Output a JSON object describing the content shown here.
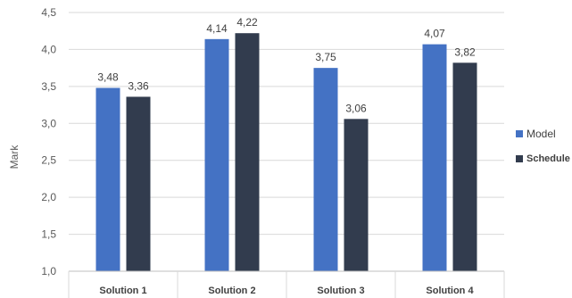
{
  "chart_data": {
    "type": "bar",
    "categories": [
      "Solution 1",
      "Solution 2",
      "Solution 3",
      "Solution 4"
    ],
    "series": [
      {
        "name": "Model",
        "values": [
          3.48,
          4.14,
          3.75,
          4.07
        ],
        "labels": [
          "3,48",
          "4,14",
          "3,75",
          "4,07"
        ],
        "color": "#4472C4"
      },
      {
        "name": "Schedule",
        "values": [
          3.36,
          4.22,
          3.06,
          3.82
        ],
        "labels": [
          "3,36",
          "4,22",
          "3,06",
          "3,82"
        ],
        "color": "#323C4E"
      }
    ],
    "ylabel": "Mark",
    "ylim": [
      1.0,
      4.5
    ],
    "yticks": [
      1.0,
      1.5,
      2.0,
      2.5,
      3.0,
      3.5,
      4.0,
      4.5
    ],
    "ytick_labels": [
      "1,0",
      "1,5",
      "2,0",
      "2,5",
      "3,0",
      "3,5",
      "4,0",
      "4,5"
    ],
    "grid": true,
    "legend_position": "right"
  }
}
